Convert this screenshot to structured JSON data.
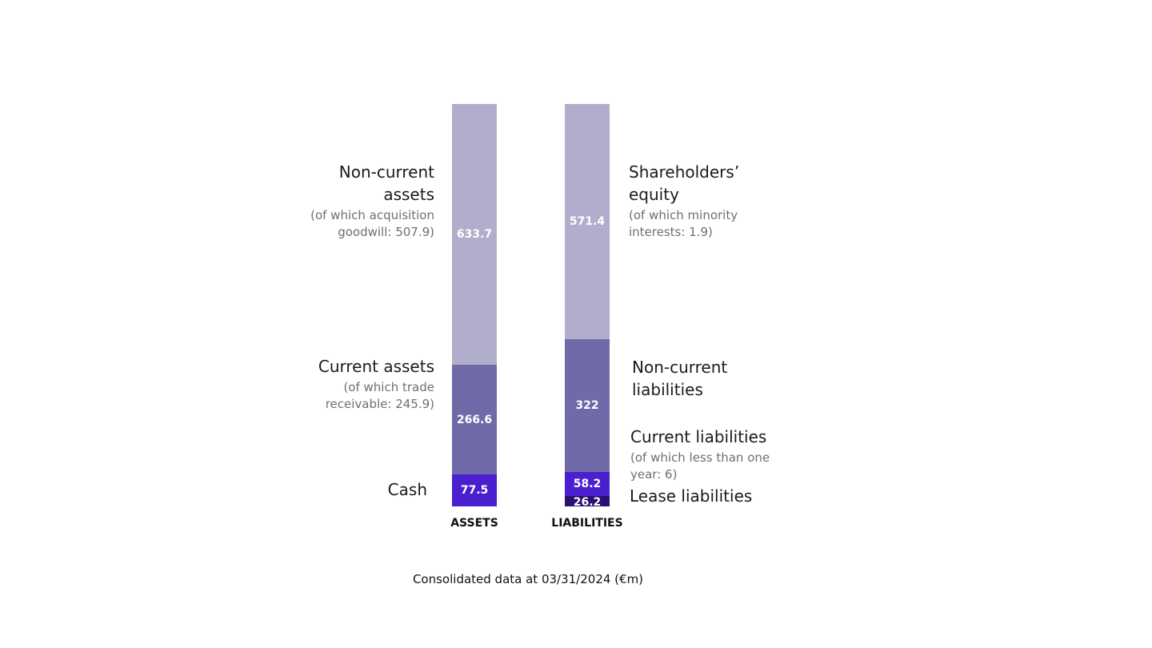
{
  "chart_data": {
    "type": "bar",
    "subtype": "stacked",
    "title": "",
    "footnote": "Consolidated data at 03/31/2024 (€m)",
    "categories": [
      "ASSETS",
      "LIABILITIES"
    ],
    "columns": [
      {
        "name": "ASSETS",
        "segments": [
          {
            "value": 77.5,
            "label": "77.5",
            "name": "Cash",
            "note": "",
            "color": "#4a1fd0"
          },
          {
            "value": 266.6,
            "label": "266.6",
            "name": "Current assets",
            "note": "(of which trade receivable: 245.9)",
            "color": "#706aa8"
          },
          {
            "value": 633.7,
            "label": "633.7",
            "name": "Non-current assets",
            "note": "(of which acquisition goodwill: 507.9)",
            "color": "#b0aecc"
          }
        ]
      },
      {
        "name": "LIABILITIES",
        "segments": [
          {
            "value": 26.2,
            "label": "26.2",
            "name": "Lease liabilities",
            "note": "",
            "color": "#2a1070"
          },
          {
            "value": 58.2,
            "label": "58.2",
            "name": "Current liabilities",
            "note": "(of which less than one year: 6)",
            "color": "#4a1fd0"
          },
          {
            "value": 322,
            "label": "322",
            "name": "Non-current liabilities",
            "note": "",
            "color": "#706aa8"
          },
          {
            "value": 571.4,
            "label": "571.4",
            "name": "Shareholders’ equity",
            "note": "(of which minority interests: 1.9)",
            "color": "#b0aecc"
          }
        ]
      }
    ],
    "grid": false,
    "legend": "none"
  }
}
